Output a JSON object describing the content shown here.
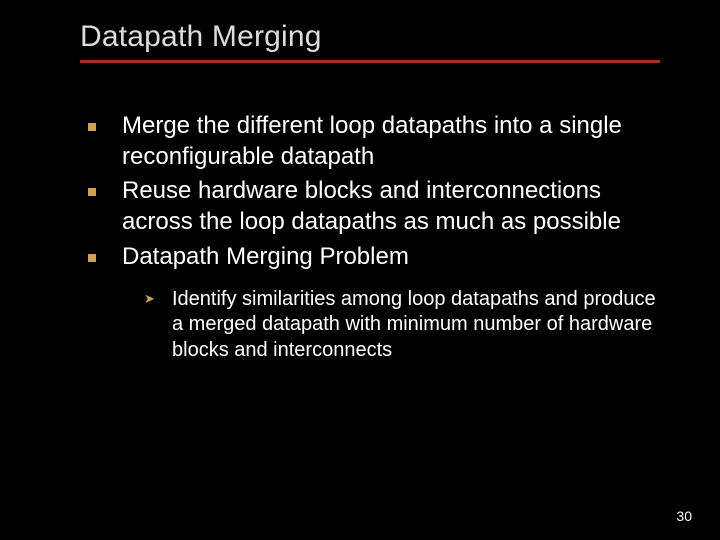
{
  "slide": {
    "title": "Datapath Merging",
    "page_number": "30",
    "background_color": "#000000",
    "title_color": "#dcdcdc",
    "title_fontsize": 30,
    "underline_color": "#b02a1a",
    "underline_width": 3,
    "body_text_color": "#ffffff",
    "body_fontsize": 24,
    "sub_fontsize": 20,
    "bullet_color": "#cfa050",
    "bullets": [
      {
        "text": "Merge the different loop datapaths into a single reconfigurable datapath"
      },
      {
        "text": "Reuse hardware blocks and interconnections across the loop datapaths as much as possible"
      },
      {
        "text": "Datapath Merging Problem",
        "sub": [
          {
            "text": "Identify similarities among loop datapaths and produce a merged datapath with minimum number of hardware blocks and interconnects"
          }
        ]
      }
    ]
  }
}
